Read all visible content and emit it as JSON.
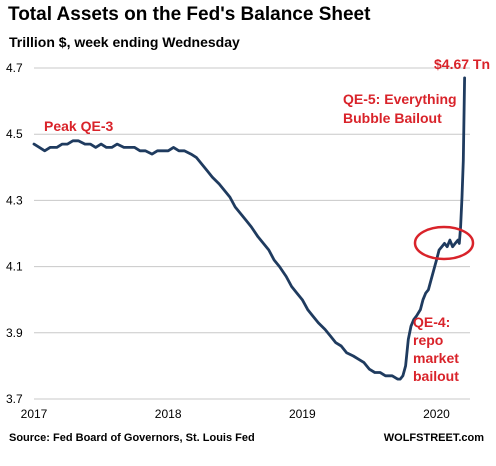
{
  "chart_data": {
    "type": "line",
    "title": "Total Assets on the Fed's Balance Sheet",
    "subtitle": "Trillion $, week ending Wednesday",
    "ylim": [
      3.7,
      4.7
    ],
    "yticks": [
      "4.7",
      "4.5",
      "4.3",
      "4.1",
      "3.9",
      "3.7"
    ],
    "xlim": [
      2017.0,
      2020.25
    ],
    "xticks": [
      "2017",
      "2018",
      "2019",
      "2020"
    ],
    "grid": "horizontal",
    "line_color": "#1f3b5f",
    "annotation_color": "#d9232a",
    "series": [
      {
        "x": [
          2017.0,
          2017.04,
          2017.08,
          2017.12,
          2017.17,
          2017.21,
          2017.25,
          2017.29,
          2017.33,
          2017.38,
          2017.42,
          2017.46,
          2017.5,
          2017.54,
          2017.58,
          2017.62,
          2017.67,
          2017.71,
          2017.75,
          2017.79,
          2017.83,
          2017.88,
          2017.92,
          2017.96,
          2018.0,
          2018.04,
          2018.08,
          2018.12,
          2018.17,
          2018.21,
          2018.25,
          2018.29,
          2018.33,
          2018.38,
          2018.42,
          2018.46,
          2018.5,
          2018.54,
          2018.58,
          2018.62,
          2018.67,
          2018.71,
          2018.75,
          2018.79,
          2018.83,
          2018.88,
          2018.92,
          2018.96,
          2019.0,
          2019.04,
          2019.08,
          2019.12,
          2019.17,
          2019.21,
          2019.25,
          2019.29,
          2019.33,
          2019.38,
          2019.42,
          2019.46,
          2019.5,
          2019.54,
          2019.58,
          2019.62,
          2019.67,
          2019.71,
          2019.73,
          2019.75,
          2019.77,
          2019.79,
          2019.81,
          2019.83,
          2019.85,
          2019.88,
          2019.9,
          2019.92,
          2019.94,
          2019.96,
          2019.98,
          2020.0,
          2020.02,
          2020.04,
          2020.06,
          2020.08,
          2020.1,
          2020.12,
          2020.14,
          2020.16,
          2020.17,
          2020.18,
          2020.19,
          2020.2,
          2020.21
        ],
        "values": [
          4.47,
          4.46,
          4.45,
          4.46,
          4.46,
          4.47,
          4.47,
          4.48,
          4.48,
          4.47,
          4.47,
          4.46,
          4.47,
          4.46,
          4.46,
          4.47,
          4.46,
          4.46,
          4.46,
          4.45,
          4.45,
          4.44,
          4.45,
          4.45,
          4.45,
          4.46,
          4.45,
          4.45,
          4.44,
          4.43,
          4.41,
          4.39,
          4.37,
          4.35,
          4.33,
          4.31,
          4.28,
          4.26,
          4.24,
          4.22,
          4.19,
          4.17,
          4.15,
          4.12,
          4.1,
          4.07,
          4.04,
          4.02,
          4.0,
          3.97,
          3.95,
          3.93,
          3.91,
          3.89,
          3.87,
          3.86,
          3.84,
          3.83,
          3.82,
          3.81,
          3.79,
          3.78,
          3.78,
          3.77,
          3.77,
          3.76,
          3.76,
          3.77,
          3.8,
          3.88,
          3.92,
          3.94,
          3.95,
          3.97,
          4.0,
          4.02,
          4.03,
          4.06,
          4.09,
          4.12,
          4.15,
          4.16,
          4.17,
          4.16,
          4.18,
          4.16,
          4.17,
          4.18,
          4.17,
          4.22,
          4.31,
          4.42,
          4.67
        ]
      }
    ],
    "annotations": {
      "peak": "Peak QE-3",
      "qe5_line1": "QE-5: Everything",
      "qe5_line2": "Bubble Bailout",
      "last_value": "$4.67 Tn",
      "qe4_line1": "QE-4:",
      "qe4_line2": "repo",
      "qe4_line3": "market",
      "qe4_line4": "bailout"
    }
  },
  "footer": {
    "source": "Source: Fed Board of Governors, St. Louis Fed",
    "brand": "WOLFSTREET.com"
  }
}
